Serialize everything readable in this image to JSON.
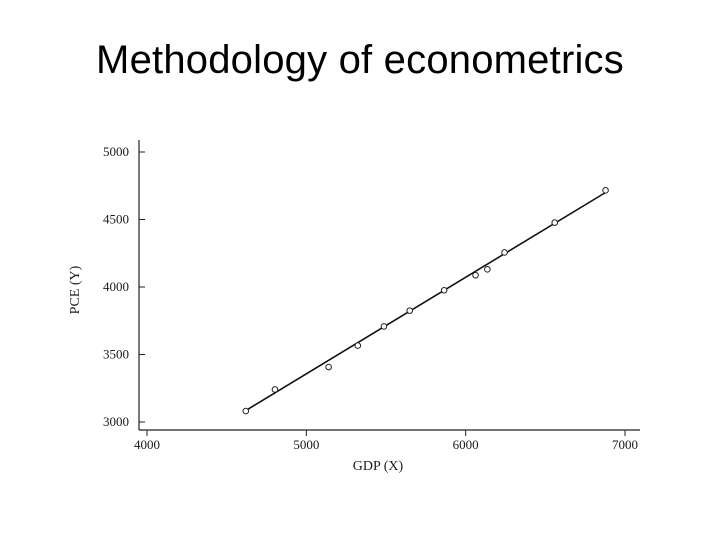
{
  "slide": {
    "title": "Methodology of econometrics"
  },
  "chart_data": {
    "type": "scatter",
    "xlabel": "GDP (X)",
    "ylabel": "PCE (Y)",
    "xlim": [
      4000,
      7000
    ],
    "ylim": [
      3000,
      5000
    ],
    "xticks": [
      4000,
      5000,
      6000,
      7000
    ],
    "yticks": [
      3000,
      3500,
      4000,
      4500,
      5000
    ],
    "grid": false,
    "points": [
      {
        "x": 4620,
        "y": 3081
      },
      {
        "x": 4803,
        "y": 3241
      },
      {
        "x": 5140,
        "y": 3407
      },
      {
        "x": 5323,
        "y": 3566
      },
      {
        "x": 5487,
        "y": 3708
      },
      {
        "x": 5649,
        "y": 3825
      },
      {
        "x": 5865,
        "y": 3976
      },
      {
        "x": 6062,
        "y": 4087
      },
      {
        "x": 6136,
        "y": 4131
      },
      {
        "x": 6244,
        "y": 4256
      },
      {
        "x": 6559,
        "y": 4477
      },
      {
        "x": 6878,
        "y": 4716
      }
    ],
    "fit_line": {
      "x": [
        4620,
        6878
      ],
      "y": [
        3085,
        4700
      ]
    }
  }
}
